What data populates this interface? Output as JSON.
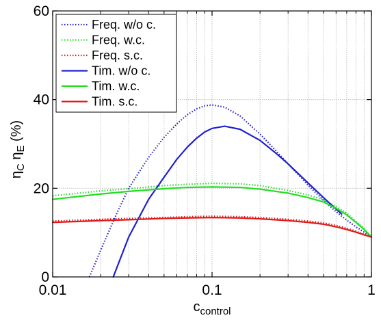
{
  "chart_data": {
    "type": "line",
    "title": "",
    "xlabel": "c",
    "xlabel_sub": "control",
    "ylabel_parts": [
      {
        "base": "η",
        "sub": "C"
      },
      {
        "base": "η",
        "sub": "E"
      },
      {
        "base": " (%)",
        "sub": ""
      }
    ],
    "xscale": "log",
    "xlim": [
      0.01,
      1
    ],
    "ylim": [
      0,
      60
    ],
    "xticks": [
      0.01,
      0.1,
      1
    ],
    "xtick_labels": [
      "0.01",
      "0.1",
      "1"
    ],
    "yticks": [
      0,
      20,
      40,
      60
    ],
    "ytick_labels": [
      "0",
      "20",
      "40",
      "60"
    ],
    "grid": true,
    "legend_position": "top-left",
    "colors": {
      "blue": "#1f1fd0",
      "green": "#22dd22",
      "red": "#e01a1a",
      "grid": "#b8b8b8"
    },
    "series": [
      {
        "name": "Freq. w/o c.",
        "color": "#1f1fd0",
        "style": "dotted",
        "x": [
          0.017,
          0.02,
          0.025,
          0.03,
          0.04,
          0.05,
          0.06,
          0.07,
          0.08,
          0.09,
          0.1,
          0.12,
          0.15,
          0.2,
          0.25,
          0.3,
          0.4,
          0.5,
          0.6,
          0.7,
          0.8,
          1.0
        ],
        "y": [
          0,
          6,
          14,
          20,
          27,
          31.5,
          34.5,
          36.6,
          37.9,
          38.6,
          38.8,
          38.3,
          36.3,
          32.2,
          28.6,
          25.5,
          20.7,
          17.3,
          14.7,
          12.8,
          11.3,
          9.0
        ]
      },
      {
        "name": "Freq. w.c.",
        "color": "#22dd22",
        "style": "dotted",
        "x": [
          0.01,
          0.02,
          0.03,
          0.05,
          0.07,
          0.1,
          0.15,
          0.2,
          0.3,
          0.4,
          0.5,
          0.6,
          0.7,
          0.8,
          0.9,
          1.0
        ],
        "y": [
          18.3,
          19.4,
          19.9,
          20.6,
          20.9,
          21.1,
          21.0,
          20.6,
          19.5,
          18.5,
          17.4,
          15.9,
          14.4,
          12.5,
          10.9,
          9.0
        ]
      },
      {
        "name": "Freq. s.c.",
        "color": "#e01a1a",
        "style": "dotted",
        "x": [
          0.01,
          0.02,
          0.03,
          0.05,
          0.07,
          0.1,
          0.15,
          0.2,
          0.3,
          0.4,
          0.5,
          0.6,
          0.7,
          0.8,
          0.9,
          1.0
        ],
        "y": [
          12.6,
          13.0,
          13.2,
          13.4,
          13.6,
          13.7,
          13.6,
          13.4,
          13.0,
          12.6,
          12.2,
          11.6,
          11.0,
          10.3,
          9.6,
          9.0
        ]
      },
      {
        "name": "Tim. w/o c.",
        "color": "#1f1fd0",
        "style": "solid",
        "x": [
          0.024,
          0.03,
          0.04,
          0.05,
          0.06,
          0.07,
          0.08,
          0.09,
          0.1,
          0.12,
          0.15,
          0.2,
          0.25,
          0.3,
          0.4,
          0.5,
          0.6,
          0.65
        ],
        "y": [
          0,
          9,
          17.5,
          22.5,
          26.5,
          29.3,
          31.3,
          32.7,
          33.5,
          34.0,
          33.3,
          30.8,
          28.0,
          25.5,
          21.2,
          17.9,
          15.3,
          14.2
        ]
      },
      {
        "name": "Tim. w.c.",
        "color": "#22dd22",
        "style": "solid",
        "x": [
          0.01,
          0.02,
          0.03,
          0.05,
          0.07,
          0.1,
          0.15,
          0.2,
          0.3,
          0.4,
          0.5,
          0.6,
          0.7,
          0.8,
          0.9,
          1.0
        ],
        "y": [
          17.5,
          18.7,
          19.3,
          19.9,
          20.2,
          20.3,
          20.2,
          19.8,
          18.9,
          17.9,
          16.9,
          15.5,
          14.0,
          12.3,
          10.7,
          9.0
        ]
      },
      {
        "name": "Tim. s.c.",
        "color": "#e01a1a",
        "style": "solid",
        "x": [
          0.01,
          0.02,
          0.03,
          0.05,
          0.07,
          0.1,
          0.15,
          0.2,
          0.3,
          0.4,
          0.5,
          0.6,
          0.7,
          0.8,
          0.9,
          1.0
        ],
        "y": [
          12.3,
          12.7,
          12.9,
          13.2,
          13.3,
          13.4,
          13.3,
          13.1,
          12.7,
          12.3,
          11.9,
          11.3,
          10.7,
          10.1,
          9.5,
          9.0
        ]
      }
    ]
  }
}
